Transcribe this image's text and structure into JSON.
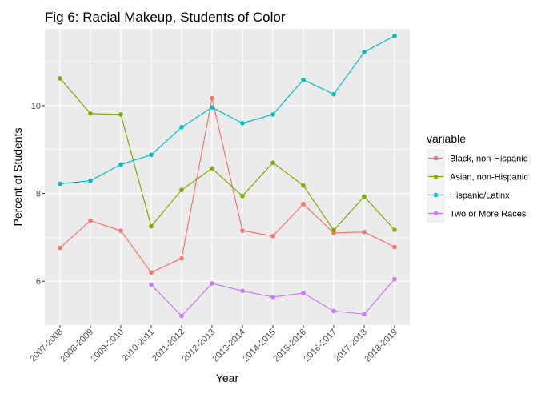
{
  "chart_data": {
    "type": "line",
    "title": "Fig 6: Racial Makeup, Students of Color",
    "xlabel": "Year",
    "ylabel": "Percent of Students",
    "categories": [
      "2007-2008",
      "2008-2009",
      "2009-2010",
      "2010-2011",
      "2011-2012",
      "2012-2013",
      "2013-2014",
      "2014-2015",
      "2015-2016",
      "2016-2017",
      "2017-2018",
      "2018-2019"
    ],
    "y_ticks": [
      6,
      8,
      10
    ],
    "y_tick_labels": [
      "6",
      "8",
      "10"
    ],
    "ylim": [
      5.0,
      11.75
    ],
    "grid": true,
    "legend": {
      "title": "variable",
      "position": "right"
    },
    "series": [
      {
        "name": "Black, non-Hispanic",
        "color": "#F8766D",
        "values": [
          6.76,
          7.38,
          7.15,
          6.2,
          6.52,
          10.17,
          7.15,
          7.03,
          7.76,
          7.1,
          7.12,
          6.78
        ]
      },
      {
        "name": "Asian, non-Hispanic",
        "color": "#7CAE00",
        "values": [
          10.62,
          9.82,
          9.8,
          7.25,
          8.08,
          8.57,
          7.94,
          8.7,
          8.18,
          7.16,
          7.93,
          7.17
        ]
      },
      {
        "name": "Hispanic/Latinx",
        "color": "#00BFC4",
        "values": [
          8.22,
          8.29,
          8.66,
          8.88,
          9.51,
          9.96,
          9.6,
          9.8,
          10.59,
          10.26,
          11.22,
          11.59
        ]
      },
      {
        "name": "Two or More Races",
        "color": "#C77CFF",
        "values": [
          null,
          null,
          null,
          5.92,
          5.21,
          5.95,
          5.78,
          5.64,
          5.73,
          5.32,
          5.25,
          6.05
        ]
      }
    ]
  }
}
